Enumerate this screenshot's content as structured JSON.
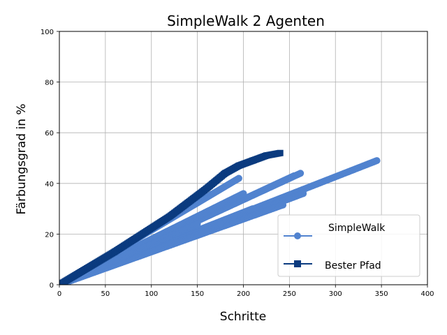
{
  "chart_data": {
    "type": "scatter",
    "title": "SimpleWalk 2 Agenten",
    "xlabel": "Schritte",
    "ylabel": "Färbungsgrad in %",
    "xlim": [
      0,
      400
    ],
    "ylim": [
      0,
      100
    ],
    "xticks": [
      0,
      50,
      100,
      150,
      200,
      250,
      300,
      350,
      400
    ],
    "yticks": [
      0,
      20,
      40,
      60,
      80,
      100
    ],
    "grid": true,
    "legend_position": "lower-right",
    "series": [
      {
        "name": "SimpleWalk",
        "color": "#5183cf",
        "marker": "circle",
        "runs": [
          {
            "x": [
              0,
              345
            ],
            "y": [
              0,
              49
            ]
          },
          {
            "x": [
              0,
              262
            ],
            "y": [
              0,
              44
            ]
          },
          {
            "x": [
              0,
              255
            ],
            "y": [
              0,
              43
            ]
          },
          {
            "x": [
              0,
              265
            ],
            "y": [
              0,
              36
            ]
          },
          {
            "x": [
              0,
              243
            ],
            "y": [
              0,
              31.5
            ]
          },
          {
            "x": [
              0,
              195
            ],
            "y": [
              0,
              42
            ]
          },
          {
            "x": [
              0,
              200
            ],
            "y": [
              0,
              36
            ]
          },
          {
            "x": [
              0,
              210
            ],
            "y": [
              0,
              30
            ]
          },
          {
            "x": [
              0,
              190
            ],
            "y": [
              0,
              27
            ]
          },
          {
            "x": [
              0,
              175
            ],
            "y": [
              0,
              24
            ]
          },
          {
            "x": [
              0,
              160
            ],
            "y": [
              0,
              21
            ]
          },
          {
            "x": [
              0,
              150
            ],
            "y": [
              0,
              24
            ]
          }
        ]
      },
      {
        "name": "Bester Pfad",
        "color": "#0b3b7f",
        "marker": "square",
        "runs": [
          {
            "x": [
              0,
              60,
              120,
              160,
              180,
              195,
              210,
              225,
              240
            ],
            "y": [
              0,
              13,
              27,
              38,
              44,
              47,
              49,
              51,
              52
            ]
          }
        ]
      }
    ]
  }
}
